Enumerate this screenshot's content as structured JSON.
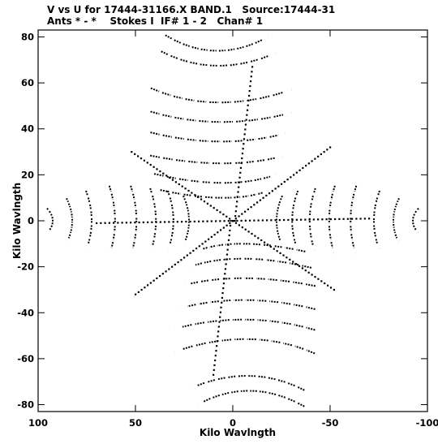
{
  "header": {
    "line1": "V vs U for 17444-31166.X BAND.1   Source:17444-31",
    "line2": "Ants * - *    Stokes I  IF# 1 - 2   Chan# 1"
  },
  "chart_data": {
    "type": "scatter",
    "title": "V vs U for 17444-31166.X BAND.1   Source:17444-31",
    "subtitle": "Ants * - *    Stokes I  IF# 1 - 2   Chan# 1",
    "xlabel": "Kilo Wavlngth",
    "ylabel": "Kilo Wavlngth",
    "xlim": [
      100,
      -100
    ],
    "ylim": [
      -83,
      83
    ],
    "x_ticks": [
      100,
      50,
      0,
      -50,
      -100
    ],
    "y_ticks": [
      80,
      60,
      40,
      20,
      0,
      -20,
      -40,
      -60,
      -80
    ],
    "grid": false,
    "legend": "none",
    "marker_color": "#000000",
    "baseline_tracks": [
      {
        "id": "arm-north",
        "u1": -10,
        "v1": 67,
        "u2": -1,
        "v2": 0
      },
      {
        "id": "arm-south",
        "u1": 10,
        "v1": -67,
        "u2": 1,
        "v2": 0
      },
      {
        "id": "arm-east",
        "u1": 70,
        "v1": -1,
        "u2": 0,
        "v2": 0
      },
      {
        "id": "arm-west",
        "u1": -70,
        "v1": 1,
        "u2": 0,
        "v2": 0
      },
      {
        "id": "arm-ne",
        "u1": 52,
        "v1": 30,
        "u2": 0,
        "v2": 0
      },
      {
        "id": "arm-sw",
        "u1": -52,
        "v1": -30,
        "u2": 0,
        "v2": 0
      },
      {
        "id": "arm-nw",
        "u1": -50,
        "v1": 32,
        "u2": 0,
        "v2": 0
      },
      {
        "id": "arm-se",
        "u1": 50,
        "v1": -32,
        "u2": 0,
        "v2": 0
      }
    ],
    "dash_arcs": [
      {
        "du": 18,
        "dv": -4,
        "points": [
          [
            33,
            80
          ],
          [
            8,
            68
          ],
          [
            -18,
            80
          ]
        ]
      },
      {
        "du": 20,
        "dv": -5,
        "points": [
          [
            35,
            73
          ],
          [
            8,
            62
          ],
          [
            -22,
            73
          ]
        ]
      },
      {
        "du": 22,
        "dv": -6,
        "points": [
          [
            40,
            57
          ],
          [
            8,
            46
          ],
          [
            -30,
            57
          ]
        ]
      },
      {
        "du": 20,
        "dv": -5,
        "points": [
          [
            40,
            47
          ],
          [
            6,
            39
          ],
          [
            -30,
            47
          ]
        ]
      },
      {
        "du": 20,
        "dv": -5,
        "points": [
          [
            40,
            38
          ],
          [
            5,
            31
          ],
          [
            -27,
            38
          ]
        ]
      },
      {
        "du": 18,
        "dv": -5,
        "points": [
          [
            40,
            28
          ],
          [
            3,
            22
          ],
          [
            -25,
            28
          ]
        ]
      },
      {
        "du": 16,
        "dv": -5,
        "points": [
          [
            38,
            20
          ],
          [
            2,
            13
          ],
          [
            -22,
            20
          ]
        ]
      },
      {
        "du": 15,
        "dv": -4,
        "points": [
          [
            35,
            13
          ],
          [
            1,
            7
          ],
          [
            -18,
            13
          ]
        ]
      },
      {
        "du": 18,
        "dv": 4,
        "points": [
          [
            -35,
            -80
          ],
          [
            -8,
            -68
          ],
          [
            18,
            -80
          ]
        ]
      },
      {
        "du": 20,
        "dv": 5,
        "points": [
          [
            -35,
            -73
          ],
          [
            -8,
            -62
          ],
          [
            22,
            -73
          ]
        ]
      },
      {
        "du": 22,
        "dv": 6,
        "points": [
          [
            -40,
            -57
          ],
          [
            -8,
            -46
          ],
          [
            30,
            -57
          ]
        ]
      },
      {
        "du": 20,
        "dv": 5,
        "points": [
          [
            -40,
            -47
          ],
          [
            -6,
            -39
          ],
          [
            30,
            -47
          ]
        ]
      },
      {
        "du": 20,
        "dv": 5,
        "points": [
          [
            -40,
            -38
          ],
          [
            -5,
            -31
          ],
          [
            27,
            -38
          ]
        ]
      },
      {
        "du": 18,
        "dv": 5,
        "points": [
          [
            -40,
            -28
          ],
          [
            -3,
            -22
          ],
          [
            25,
            -28
          ]
        ]
      },
      {
        "du": 16,
        "dv": 5,
        "points": [
          [
            -38,
            -20
          ],
          [
            -2,
            -13
          ],
          [
            22,
            -20
          ]
        ]
      },
      {
        "du": 15,
        "dv": 4,
        "points": [
          [
            -35,
            -13
          ],
          [
            -1,
            -7
          ],
          [
            18,
            -13
          ]
        ]
      }
    ],
    "side_arcs": [
      {
        "points": [
          [
            95,
            5
          ],
          [
            90,
            0
          ],
          [
            95,
            -5
          ]
        ]
      },
      {
        "points": [
          [
            85,
            9
          ],
          [
            80,
            0
          ],
          [
            85,
            -9
          ]
        ]
      },
      {
        "points": [
          [
            75,
            12
          ],
          [
            70,
            0
          ],
          [
            75,
            -12
          ]
        ]
      },
      {
        "points": [
          [
            63,
            14
          ],
          [
            58,
            0
          ],
          [
            63,
            -14
          ]
        ]
      },
      {
        "points": [
          [
            52,
            14
          ],
          [
            47,
            0
          ],
          [
            52,
            -14
          ]
        ]
      },
      {
        "points": [
          [
            42,
            13
          ],
          [
            37,
            0
          ],
          [
            42,
            -13
          ]
        ]
      },
      {
        "points": [
          [
            33,
            12
          ],
          [
            28,
            0
          ],
          [
            33,
            -12
          ]
        ]
      },
      {
        "points": [
          [
            25,
            10
          ],
          [
            20,
            0
          ],
          [
            25,
            -10
          ]
        ]
      },
      {
        "points": [
          [
            -95,
            5
          ],
          [
            -90,
            0
          ],
          [
            -95,
            -5
          ]
        ]
      },
      {
        "points": [
          [
            -85,
            9
          ],
          [
            -80,
            0
          ],
          [
            -85,
            -9
          ]
        ]
      },
      {
        "points": [
          [
            -75,
            12
          ],
          [
            -70,
            0
          ],
          [
            -75,
            -12
          ]
        ]
      },
      {
        "points": [
          [
            -63,
            14
          ],
          [
            -58,
            0
          ],
          [
            -63,
            -14
          ]
        ]
      },
      {
        "points": [
          [
            -52,
            14
          ],
          [
            -47,
            0
          ],
          [
            -52,
            -14
          ]
        ]
      },
      {
        "points": [
          [
            -42,
            13
          ],
          [
            -37,
            0
          ],
          [
            -42,
            -13
          ]
        ]
      },
      {
        "points": [
          [
            -33,
            12
          ],
          [
            -28,
            0
          ],
          [
            -33,
            -12
          ]
        ]
      },
      {
        "points": [
          [
            -25,
            10
          ],
          [
            -20,
            0
          ],
          [
            -25,
            -10
          ]
        ]
      }
    ]
  }
}
